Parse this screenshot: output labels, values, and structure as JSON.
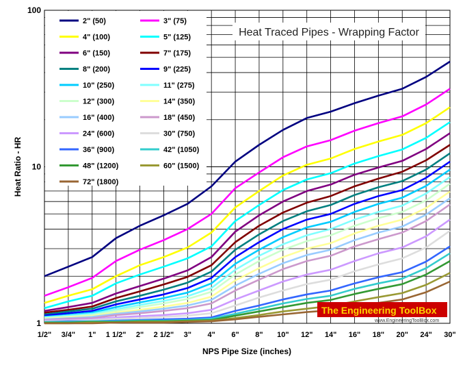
{
  "chart_data": {
    "type": "line",
    "title": "Heat Traced Pipes - Wrapping Factor",
    "xlabel": "NPS Pipe Size (inches)",
    "ylabel": "Heat Ratio - HR",
    "yscale": "log",
    "ylim": [
      1,
      100
    ],
    "yticks": [
      "1",
      "10",
      "100"
    ],
    "categories": [
      "1/2\"",
      "3/4\"",
      "1\"",
      "1 1/2\"",
      "2\"",
      "2 1/2\"",
      "3\"",
      "4\"",
      "6\"",
      "8\"",
      "10\"",
      "12\"",
      "14\"",
      "16\"",
      "18\"",
      "20\"",
      "24\"",
      "30\""
    ],
    "series": [
      {
        "name": "2\" (50)",
        "color": "#000080",
        "values": [
          2.0,
          2.3,
          2.65,
          3.5,
          4.2,
          4.9,
          5.8,
          7.5,
          10.8,
          13.8,
          17.2,
          20.5,
          22.5,
          25.5,
          28.5,
          31.5,
          37.5,
          47.0
        ]
      },
      {
        "name": "3\" (75)",
        "color": "#ff00ff",
        "values": [
          1.5,
          1.7,
          1.95,
          2.5,
          2.95,
          3.4,
          4.0,
          5.0,
          7.3,
          9.2,
          11.5,
          13.5,
          14.8,
          17.0,
          19.0,
          21.0,
          25.0,
          31.5
        ]
      },
      {
        "name": "4\" (100)",
        "color": "#ffff00",
        "values": [
          1.35,
          1.5,
          1.65,
          2.0,
          2.35,
          2.65,
          3.05,
          3.8,
          5.5,
          7.0,
          8.8,
          10.3,
          11.3,
          13.0,
          14.5,
          16.0,
          19.0,
          24.0
        ]
      },
      {
        "name": "5\" (125)",
        "color": "#00ffff",
        "values": [
          1.25,
          1.38,
          1.5,
          1.8,
          2.05,
          2.3,
          2.6,
          3.1,
          4.5,
          5.7,
          7.1,
          8.3,
          9.1,
          10.5,
          11.7,
          12.9,
          15.3,
          19.3
        ]
      },
      {
        "name": "6\" (150)",
        "color": "#800080",
        "values": [
          1.2,
          1.27,
          1.35,
          1.55,
          1.73,
          1.93,
          2.18,
          2.65,
          3.85,
          4.9,
          6.0,
          7.0,
          7.7,
          8.9,
          9.9,
          10.9,
          13.0,
          16.4
        ]
      },
      {
        "name": "7\" (175)",
        "color": "#800000",
        "values": [
          1.17,
          1.22,
          1.28,
          1.45,
          1.6,
          1.77,
          1.98,
          2.35,
          3.3,
          4.2,
          5.1,
          5.9,
          6.5,
          7.5,
          8.4,
          9.3,
          11.0,
          13.8
        ]
      },
      {
        "name": "8\" (200)",
        "color": "#008080",
        "values": [
          1.14,
          1.19,
          1.24,
          1.38,
          1.5,
          1.64,
          1.82,
          2.14,
          2.95,
          3.7,
          4.5,
          5.2,
          5.7,
          6.6,
          7.4,
          8.1,
          9.6,
          12.2
        ]
      },
      {
        "name": "9\" (225)",
        "color": "#0000ff",
        "values": [
          1.12,
          1.16,
          1.2,
          1.32,
          1.42,
          1.53,
          1.68,
          1.95,
          2.65,
          3.3,
          4.0,
          4.6,
          5.0,
          5.8,
          6.5,
          7.1,
          8.5,
          10.8
        ]
      },
      {
        "name": "10\" (250)",
        "color": "#00ccff",
        "values": [
          1.1,
          1.13,
          1.17,
          1.27,
          1.36,
          1.45,
          1.57,
          1.8,
          2.4,
          2.95,
          3.55,
          4.1,
          4.45,
          5.15,
          5.8,
          6.35,
          7.55,
          9.6
        ]
      },
      {
        "name": "11\" (275)",
        "color": "#80ffff",
        "values": [
          1.09,
          1.12,
          1.15,
          1.23,
          1.31,
          1.39,
          1.49,
          1.68,
          2.2,
          2.7,
          3.2,
          3.65,
          4.0,
          4.6,
          5.15,
          5.65,
          6.75,
          8.6
        ]
      },
      {
        "name": "12\" (300)",
        "color": "#ccffcc",
        "values": [
          1.08,
          1.1,
          1.13,
          1.2,
          1.27,
          1.34,
          1.43,
          1.59,
          2.05,
          2.5,
          2.95,
          3.35,
          3.65,
          4.2,
          4.7,
          5.15,
          6.1,
          7.8
        ]
      },
      {
        "name": "14\" (350)",
        "color": "#ffff99",
        "values": [
          1.07,
          1.09,
          1.11,
          1.17,
          1.22,
          1.28,
          1.35,
          1.48,
          1.88,
          2.25,
          2.65,
          3.0,
          3.25,
          3.75,
          4.2,
          4.6,
          5.45,
          6.95
        ]
      },
      {
        "name": "16\" (400)",
        "color": "#99ccff",
        "values": [
          1.06,
          1.08,
          1.1,
          1.15,
          1.19,
          1.24,
          1.3,
          1.41,
          1.74,
          2.07,
          2.42,
          2.73,
          2.95,
          3.4,
          3.8,
          4.15,
          4.95,
          6.3
        ]
      },
      {
        "name": "18\" (450)",
        "color": "#cc99cc",
        "values": [
          1.05,
          1.07,
          1.08,
          1.13,
          1.16,
          1.2,
          1.25,
          1.34,
          1.62,
          1.9,
          2.22,
          2.5,
          2.7,
          3.1,
          3.45,
          3.8,
          4.5,
          5.75
        ]
      },
      {
        "name": "24\" (600)",
        "color": "#cc99ff",
        "values": [
          1.04,
          1.05,
          1.06,
          1.09,
          1.11,
          1.13,
          1.16,
          1.22,
          1.42,
          1.62,
          1.85,
          2.05,
          2.2,
          2.5,
          2.8,
          3.05,
          3.6,
          4.6
        ]
      },
      {
        "name": "30\" (750)",
        "color": "#dddddd",
        "values": [
          1.03,
          1.04,
          1.05,
          1.07,
          1.08,
          1.1,
          1.12,
          1.16,
          1.3,
          1.46,
          1.62,
          1.78,
          1.9,
          2.15,
          2.38,
          2.6,
          3.05,
          3.9
        ]
      },
      {
        "name": "36\" (900)",
        "color": "#3366ff",
        "values": [
          1.02,
          1.03,
          1.03,
          1.04,
          1.05,
          1.06,
          1.07,
          1.09,
          1.2,
          1.3,
          1.42,
          1.53,
          1.62,
          1.8,
          1.97,
          2.12,
          2.48,
          3.1
        ]
      },
      {
        "name": "42\" (1050)",
        "color": "#33cccc",
        "values": [
          1.02,
          1.02,
          1.03,
          1.03,
          1.04,
          1.04,
          1.05,
          1.07,
          1.15,
          1.24,
          1.34,
          1.43,
          1.5,
          1.66,
          1.8,
          1.93,
          2.25,
          2.8
        ]
      },
      {
        "name": "48\" (1200)",
        "color": "#339933",
        "values": [
          1.01,
          1.01,
          1.02,
          1.02,
          1.03,
          1.03,
          1.04,
          1.05,
          1.12,
          1.19,
          1.27,
          1.35,
          1.41,
          1.54,
          1.66,
          1.78,
          2.05,
          2.5
        ]
      },
      {
        "name": "60\" (1500)",
        "color": "#999933",
        "values": [
          1.0,
          1.0,
          1.01,
          1.01,
          1.02,
          1.02,
          1.03,
          1.04,
          1.08,
          1.13,
          1.19,
          1.24,
          1.29,
          1.38,
          1.47,
          1.56,
          1.76,
          2.1
        ]
      },
      {
        "name": "72\" (1800)",
        "color": "#996633",
        "values": [
          1.0,
          1.0,
          1.0,
          1.01,
          1.01,
          1.01,
          1.02,
          1.03,
          1.06,
          1.1,
          1.14,
          1.18,
          1.21,
          1.28,
          1.35,
          1.42,
          1.58,
          1.85
        ]
      }
    ]
  },
  "brand": {
    "name": "The Engineering ToolBox",
    "url": "www.EngineeringToolBox.com"
  }
}
